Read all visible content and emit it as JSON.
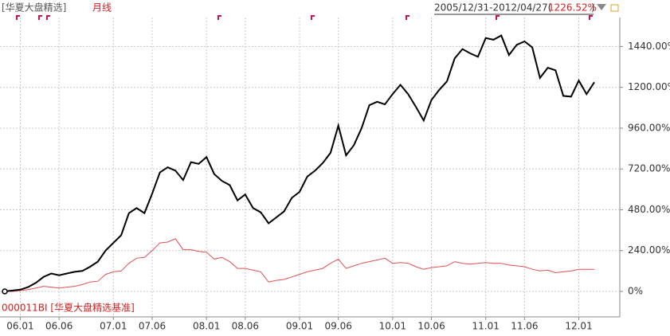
{
  "chart_data": {
    "type": "line",
    "header": {
      "period": "月线",
      "range": "2005/12/31-2012/04/27(",
      "return": "1226.52%",
      "close": ")"
    },
    "benchmark_label": "000011BI [华夏大盘精选基准]",
    "categories": [
      null,
      null,
      "06.01",
      null,
      null,
      null,
      null,
      "06.06",
      null,
      null,
      null,
      null,
      null,
      null,
      "07.01",
      null,
      null,
      null,
      null,
      "07.06",
      null,
      null,
      null,
      null,
      null,
      null,
      "08.01",
      null,
      null,
      null,
      null,
      "08.06",
      null,
      null,
      null,
      null,
      null,
      null,
      "09.01",
      null,
      null,
      null,
      null,
      "09.06",
      null,
      null,
      null,
      null,
      null,
      null,
      "10.01",
      null,
      null,
      null,
      null,
      "10.06",
      null,
      null,
      null,
      null,
      null,
      null,
      "11.01",
      null,
      null,
      null,
      null,
      "11.06",
      null,
      null,
      null,
      null,
      null,
      null,
      "12.01",
      null,
      null
    ],
    "series": [
      {
        "name": "[华夏大盘精选]",
        "color": "#000000",
        "values": [
          0,
          5,
          10,
          25,
          50,
          85,
          105,
          95,
          105,
          115,
          120,
          145,
          175,
          240,
          285,
          330,
          460,
          490,
          460,
          575,
          700,
          730,
          710,
          655,
          760,
          750,
          790,
          690,
          650,
          625,
          535,
          570,
          490,
          465,
          400,
          435,
          470,
          550,
          585,
          675,
          710,
          755,
          815,
          975,
          800,
          860,
          960,
          1095,
          1115,
          1100,
          1160,
          1215,
          1160,
          1085,
          1005,
          1125,
          1185,
          1235,
          1370,
          1425,
          1400,
          1380,
          1490,
          1480,
          1505,
          1390,
          1450,
          1470,
          1435,
          1255,
          1315,
          1300,
          1150,
          1145,
          1240,
          1160,
          1230
        ]
      },
      {
        "name": "000011BI [华夏大盘精选基准]",
        "color": "#e05050",
        "values": [
          0,
          0,
          5,
          10,
          20,
          30,
          25,
          20,
          25,
          30,
          40,
          55,
          60,
          100,
          115,
          120,
          165,
          195,
          200,
          240,
          285,
          290,
          310,
          245,
          245,
          235,
          230,
          190,
          200,
          175,
          135,
          135,
          125,
          115,
          55,
          65,
          70,
          85,
          100,
          115,
          125,
          135,
          165,
          190,
          135,
          150,
          165,
          175,
          185,
          195,
          165,
          170,
          165,
          145,
          130,
          140,
          145,
          150,
          175,
          165,
          160,
          165,
          170,
          165,
          165,
          155,
          150,
          145,
          130,
          120,
          125,
          110,
          115,
          120,
          130,
          130,
          130
        ]
      }
    ],
    "ylim": [
      -150,
      1620
    ],
    "yticks": [
      {
        "value": 0,
        "label": "0%"
      },
      {
        "value": 240,
        "label": "240.00%"
      },
      {
        "value": 480,
        "label": "480.00%"
      },
      {
        "value": 720,
        "label": "720.00%"
      },
      {
        "value": 960,
        "label": "960.00%"
      },
      {
        "value": 1200,
        "label": "1200.00%"
      },
      {
        "value": 1440,
        "label": "1440.00%"
      }
    ],
    "grid": true
  }
}
